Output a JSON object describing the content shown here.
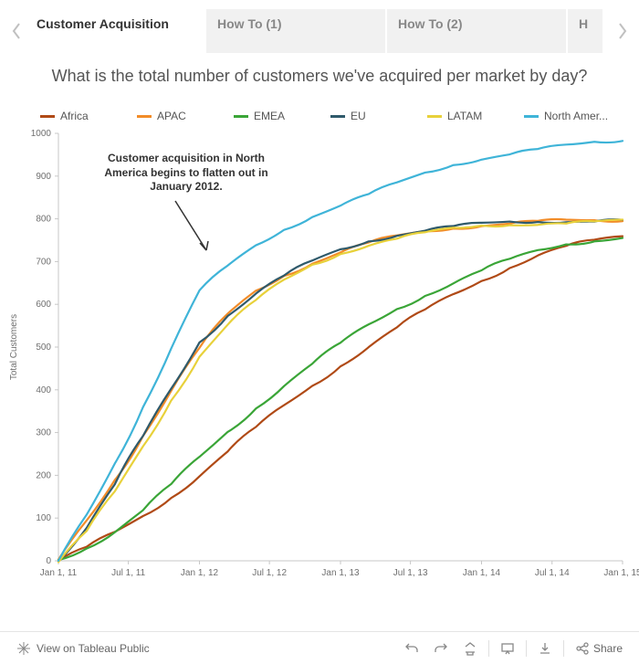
{
  "tabs": {
    "items": [
      {
        "label": "Customer Acquisition",
        "active": true
      },
      {
        "label": "How To (1)",
        "active": false
      },
      {
        "label": "How To (2)",
        "active": false
      },
      {
        "label": "H",
        "active": false
      }
    ]
  },
  "chart": {
    "type": "line",
    "title": "What is the total number of customers we've acquired per market by day?",
    "ylabel": "Total Customers",
    "ylim": [
      0,
      1000
    ],
    "ytick_step": 100,
    "x_ticks": [
      "Jan 1, 11",
      "Jul 1, 11",
      "Jan 1, 12",
      "Jul 1, 12",
      "Jan 1, 13",
      "Jul 1, 13",
      "Jan 1, 14",
      "Jul 1, 14",
      "Jan 1, 15"
    ],
    "x_tick_t": [
      0.0,
      0.124,
      0.25,
      0.374,
      0.5,
      0.624,
      0.75,
      0.875,
      1.0
    ],
    "grid_on": false,
    "axis_color": "#c7c7c7",
    "tick_font_size": 10,
    "tick_color": "#6f6f6f",
    "title_font_size": 18,
    "title_color": "#555555",
    "label_font_size": 10,
    "line_width": 2.2,
    "background_color": "#ffffff",
    "annotation": {
      "text": "Customer acquisition in North America begins to flatten out in January 2012.",
      "target": {
        "t": 0.25,
        "y": 640
      }
    },
    "series": [
      {
        "name": "Africa",
        "color": "#b04a16",
        "points": [
          [
            0.0,
            0
          ],
          [
            0.05,
            30
          ],
          [
            0.1,
            65
          ],
          [
            0.15,
            105
          ],
          [
            0.2,
            150
          ],
          [
            0.25,
            200
          ],
          [
            0.3,
            255
          ],
          [
            0.35,
            310
          ],
          [
            0.4,
            362
          ],
          [
            0.45,
            410
          ],
          [
            0.5,
            458
          ],
          [
            0.55,
            502
          ],
          [
            0.6,
            545
          ],
          [
            0.65,
            585
          ],
          [
            0.7,
            622
          ],
          [
            0.75,
            656
          ],
          [
            0.8,
            688
          ],
          [
            0.85,
            716
          ],
          [
            0.9,
            735
          ],
          [
            0.95,
            748
          ],
          [
            1.0,
            758
          ]
        ]
      },
      {
        "name": "APAC",
        "color": "#f28c28",
        "points": [
          [
            0.0,
            0
          ],
          [
            0.05,
            92
          ],
          [
            0.1,
            190
          ],
          [
            0.15,
            295
          ],
          [
            0.2,
            400
          ],
          [
            0.25,
            497
          ],
          [
            0.3,
            575
          ],
          [
            0.35,
            630
          ],
          [
            0.4,
            668
          ],
          [
            0.45,
            698
          ],
          [
            0.5,
            723
          ],
          [
            0.55,
            743
          ],
          [
            0.6,
            758
          ],
          [
            0.65,
            770
          ],
          [
            0.7,
            779
          ],
          [
            0.75,
            786
          ],
          [
            0.8,
            790
          ],
          [
            0.85,
            793
          ],
          [
            0.9,
            795
          ],
          [
            0.95,
            796
          ],
          [
            1.0,
            797
          ]
        ]
      },
      {
        "name": "EMEA",
        "color": "#3aa537",
        "points": [
          [
            0.0,
            0
          ],
          [
            0.05,
            30
          ],
          [
            0.1,
            70
          ],
          [
            0.15,
            120
          ],
          [
            0.2,
            178
          ],
          [
            0.25,
            240
          ],
          [
            0.3,
            300
          ],
          [
            0.35,
            358
          ],
          [
            0.4,
            412
          ],
          [
            0.45,
            462
          ],
          [
            0.5,
            508
          ],
          [
            0.55,
            550
          ],
          [
            0.6,
            588
          ],
          [
            0.65,
            622
          ],
          [
            0.7,
            652
          ],
          [
            0.75,
            680
          ],
          [
            0.8,
            704
          ],
          [
            0.85,
            724
          ],
          [
            0.9,
            740
          ],
          [
            0.95,
            750
          ],
          [
            1.0,
            758
          ]
        ]
      },
      {
        "name": "EU",
        "color": "#2f5a6b",
        "points": [
          [
            0.0,
            0
          ],
          [
            0.05,
            80
          ],
          [
            0.1,
            180
          ],
          [
            0.15,
            290
          ],
          [
            0.2,
            400
          ],
          [
            0.25,
            510
          ],
          [
            0.3,
            575
          ],
          [
            0.35,
            628
          ],
          [
            0.4,
            668
          ],
          [
            0.45,
            700
          ],
          [
            0.5,
            726
          ],
          [
            0.55,
            747
          ],
          [
            0.6,
            763
          ],
          [
            0.65,
            775
          ],
          [
            0.7,
            783
          ],
          [
            0.75,
            788
          ],
          [
            0.8,
            791
          ],
          [
            0.85,
            793
          ],
          [
            0.9,
            795
          ],
          [
            0.95,
            796
          ],
          [
            1.0,
            797
          ]
        ]
      },
      {
        "name": "LATAM",
        "color": "#e8d13a",
        "points": [
          [
            0.0,
            0
          ],
          [
            0.05,
            70
          ],
          [
            0.1,
            160
          ],
          [
            0.15,
            265
          ],
          [
            0.2,
            375
          ],
          [
            0.25,
            480
          ],
          [
            0.3,
            555
          ],
          [
            0.35,
            610
          ],
          [
            0.4,
            655
          ],
          [
            0.45,
            690
          ],
          [
            0.5,
            718
          ],
          [
            0.55,
            740
          ],
          [
            0.6,
            756
          ],
          [
            0.65,
            768
          ],
          [
            0.7,
            776
          ],
          [
            0.75,
            782
          ],
          [
            0.8,
            786
          ],
          [
            0.85,
            789
          ],
          [
            0.9,
            791
          ],
          [
            0.95,
            793
          ],
          [
            1.0,
            795
          ]
        ]
      },
      {
        "name": "North Amer...",
        "color": "#3fb4d8",
        "points": [
          [
            0.0,
            0
          ],
          [
            0.05,
            105
          ],
          [
            0.1,
            225
          ],
          [
            0.15,
            360
          ],
          [
            0.2,
            500
          ],
          [
            0.25,
            635
          ],
          [
            0.3,
            690
          ],
          [
            0.35,
            735
          ],
          [
            0.4,
            772
          ],
          [
            0.45,
            805
          ],
          [
            0.5,
            834
          ],
          [
            0.55,
            860
          ],
          [
            0.6,
            884
          ],
          [
            0.65,
            905
          ],
          [
            0.7,
            924
          ],
          [
            0.75,
            940
          ],
          [
            0.8,
            954
          ],
          [
            0.85,
            965
          ],
          [
            0.9,
            972
          ],
          [
            0.95,
            977
          ],
          [
            1.0,
            981
          ]
        ]
      }
    ]
  },
  "footer": {
    "view_label": "View on Tableau Public",
    "share_label": "Share"
  }
}
